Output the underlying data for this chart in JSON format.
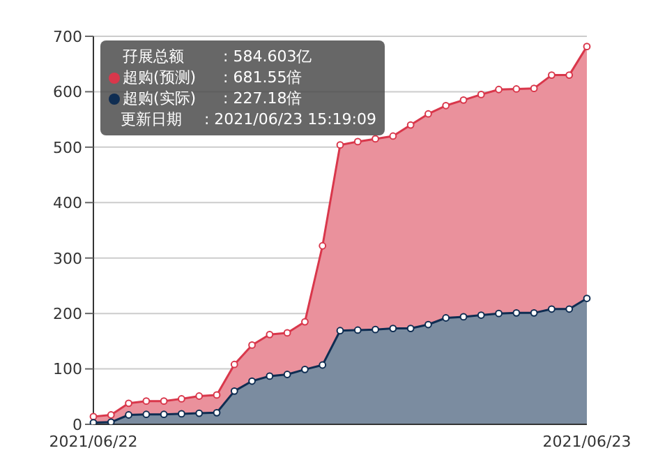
{
  "chart_data": {
    "type": "area",
    "categories": [
      "2021/06/22",
      null,
      null,
      null,
      null,
      null,
      null,
      null,
      null,
      null,
      null,
      null,
      null,
      null,
      null,
      null,
      null,
      null,
      null,
      null,
      null,
      null,
      null,
      null,
      null,
      null,
      null,
      null,
      "2021/06/23"
    ],
    "series": [
      {
        "name": "超购(预测)",
        "color": "#d9374b",
        "values": [
          14,
          17,
          38,
          42,
          42,
          46,
          51,
          53,
          108,
          143,
          162,
          165,
          185,
          322,
          504,
          510,
          515,
          520,
          540,
          560,
          575,
          585,
          595,
          604,
          605,
          606,
          630,
          630,
          681.55
        ]
      },
      {
        "name": "超购(实际)",
        "color": "#0f2d52",
        "values": [
          3,
          4,
          17,
          18,
          18,
          19,
          20,
          21,
          60,
          78,
          87,
          90,
          99,
          107,
          169,
          170,
          171,
          173,
          173,
          180,
          192,
          194,
          197,
          200,
          201,
          201,
          208,
          208,
          227.18
        ]
      }
    ],
    "annotations": [
      "孖展总额",
      ": 584.603亿",
      ": 681.55倍",
      ": 227.18倍",
      "更新日期",
      ": 2021/06/23 15:19:09"
    ],
    "ylim": [
      0,
      700
    ],
    "yticks": [
      0,
      100,
      200,
      300,
      400,
      500,
      600,
      700
    ],
    "grid": "y",
    "marker": "circle",
    "legend": "top left"
  }
}
